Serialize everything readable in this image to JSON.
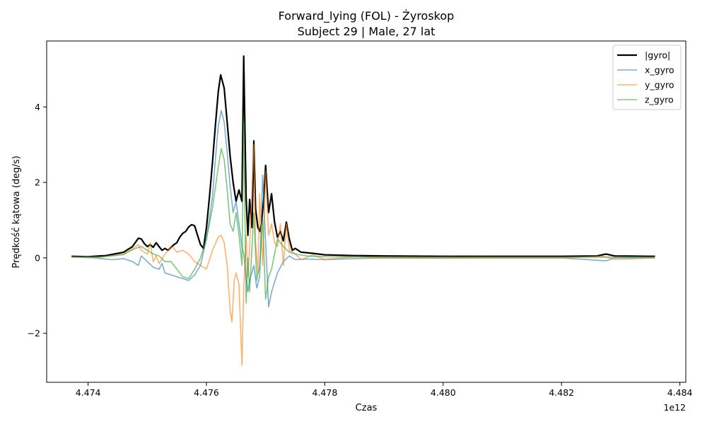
{
  "chart_data": {
    "type": "line",
    "title": "Forward_lying (FOL) - Żyroskop",
    "subtitle": "Subject 29 | Male, 27 lat",
    "xlabel": "Czas",
    "ylabel": "Prędkość kątowa (deg/s)",
    "x_offset_label": "1e12",
    "xlim": [
      4.4733,
      4.4841
    ],
    "ylim": [
      -3.3,
      5.75
    ],
    "x_ticks": [
      4.474,
      4.476,
      4.478,
      4.48,
      4.482,
      4.484
    ],
    "x_tick_labels": [
      "4.474",
      "4.476",
      "4.478",
      "4.480",
      "4.482",
      "4.484"
    ],
    "y_ticks": [
      -2,
      0,
      2,
      4
    ],
    "y_tick_labels": [
      "−2",
      "0",
      "2",
      "4"
    ],
    "grid": false,
    "legend_position": "top-right",
    "series": [
      {
        "name": "|gyro|",
        "color": "#000000",
        "width": 2.2,
        "opacity": 1,
        "points": [
          [
            4.47372,
            0.04
          ],
          [
            4.474,
            0.03
          ],
          [
            4.4743,
            0.06
          ],
          [
            4.4746,
            0.15
          ],
          [
            4.47475,
            0.3
          ],
          [
            4.47485,
            0.52
          ],
          [
            4.4749,
            0.5
          ],
          [
            4.47495,
            0.38
          ],
          [
            4.475,
            0.3
          ],
          [
            4.47505,
            0.35
          ],
          [
            4.4751,
            0.28
          ],
          [
            4.47515,
            0.4
          ],
          [
            4.4752,
            0.3
          ],
          [
            4.47525,
            0.2
          ],
          [
            4.4753,
            0.25
          ],
          [
            4.47535,
            0.2
          ],
          [
            4.4754,
            0.28
          ],
          [
            4.47545,
            0.35
          ],
          [
            4.4755,
            0.4
          ],
          [
            4.47555,
            0.55
          ],
          [
            4.4756,
            0.65
          ],
          [
            4.47565,
            0.7
          ],
          [
            4.4757,
            0.82
          ],
          [
            4.47575,
            0.88
          ],
          [
            4.4758,
            0.85
          ],
          [
            4.47585,
            0.6
          ],
          [
            4.4759,
            0.35
          ],
          [
            4.47595,
            0.25
          ],
          [
            4.476,
            0.8
          ],
          [
            4.47605,
            1.6
          ],
          [
            4.4761,
            2.5
          ],
          [
            4.47615,
            3.5
          ],
          [
            4.4762,
            4.4
          ],
          [
            4.47624,
            4.85
          ],
          [
            4.4763,
            4.5
          ],
          [
            4.47635,
            3.6
          ],
          [
            4.4764,
            2.7
          ],
          [
            4.47645,
            2.0
          ],
          [
            4.4765,
            1.5
          ],
          [
            4.47655,
            1.8
          ],
          [
            4.4766,
            1.5
          ],
          [
            4.47663,
            5.35
          ],
          [
            4.47667,
            1.6
          ],
          [
            4.4767,
            0.6
          ],
          [
            4.47673,
            1.55
          ],
          [
            4.47677,
            0.8
          ],
          [
            4.4768,
            3.1
          ],
          [
            4.47683,
            1.3
          ],
          [
            4.47687,
            0.8
          ],
          [
            4.4769,
            0.7
          ],
          [
            4.47693,
            0.9
          ],
          [
            4.47697,
            1.6
          ],
          [
            4.477,
            2.45
          ],
          [
            4.47705,
            1.2
          ],
          [
            4.4771,
            1.7
          ],
          [
            4.47715,
            0.95
          ],
          [
            4.4772,
            0.55
          ],
          [
            4.47725,
            0.7
          ],
          [
            4.4773,
            0.45
          ],
          [
            4.47735,
            0.95
          ],
          [
            4.4774,
            0.5
          ],
          [
            4.47745,
            0.2
          ],
          [
            4.4775,
            0.25
          ],
          [
            4.4776,
            0.15
          ],
          [
            4.4778,
            0.12
          ],
          [
            4.478,
            0.08
          ],
          [
            4.4785,
            0.06
          ],
          [
            4.479,
            0.05
          ],
          [
            4.48,
            0.04
          ],
          [
            4.481,
            0.04
          ],
          [
            4.482,
            0.04
          ],
          [
            4.4826,
            0.05
          ],
          [
            4.48275,
            0.1
          ],
          [
            4.4829,
            0.05
          ],
          [
            4.4835,
            0.04
          ],
          [
            4.48358,
            0.04
          ]
        ]
      },
      {
        "name": "x_gyro",
        "color": "#1f77b4",
        "width": 1.6,
        "opacity": 0.6,
        "points": [
          [
            4.47372,
            0.03
          ],
          [
            4.4741,
            0.0
          ],
          [
            4.4744,
            -0.05
          ],
          [
            4.4746,
            -0.02
          ],
          [
            4.47475,
            -0.1
          ],
          [
            4.47485,
            -0.2
          ],
          [
            4.4749,
            0.05
          ],
          [
            4.475,
            -0.1
          ],
          [
            4.4751,
            -0.25
          ],
          [
            4.4752,
            -0.3
          ],
          [
            4.47525,
            -0.15
          ],
          [
            4.4753,
            -0.4
          ],
          [
            4.4755,
            -0.5
          ],
          [
            4.4757,
            -0.6
          ],
          [
            4.4758,
            -0.45
          ],
          [
            4.4759,
            -0.2
          ],
          [
            4.476,
            0.5
          ],
          [
            4.4761,
            1.6
          ],
          [
            4.47615,
            2.6
          ],
          [
            4.4762,
            3.5
          ],
          [
            4.47625,
            3.9
          ],
          [
            4.4763,
            3.6
          ],
          [
            4.47635,
            2.8
          ],
          [
            4.4764,
            1.9
          ],
          [
            4.47645,
            1.2
          ],
          [
            4.4765,
            1.5
          ],
          [
            4.47655,
            0.9
          ],
          [
            4.4766,
            0.3
          ],
          [
            4.47663,
            0.1
          ],
          [
            4.47667,
            -0.5
          ],
          [
            4.4767,
            -0.9
          ],
          [
            4.47673,
            -0.6
          ],
          [
            4.4768,
            -0.2
          ],
          [
            4.47685,
            -0.8
          ],
          [
            4.4769,
            -0.5
          ],
          [
            4.47695,
            2.2
          ],
          [
            4.477,
            0.4
          ],
          [
            4.47705,
            -1.3
          ],
          [
            4.4771,
            -0.9
          ],
          [
            4.4772,
            -0.4
          ],
          [
            4.4773,
            -0.1
          ],
          [
            4.4774,
            0.05
          ],
          [
            4.4775,
            -0.05
          ],
          [
            4.4777,
            -0.03
          ],
          [
            4.478,
            -0.05
          ],
          [
            4.4785,
            -0.02
          ],
          [
            4.479,
            0.0
          ],
          [
            4.48,
            -0.01
          ],
          [
            4.481,
            0.0
          ],
          [
            4.482,
            0.0
          ],
          [
            4.48275,
            -0.08
          ],
          [
            4.4829,
            0.0
          ],
          [
            4.48358,
            0.0
          ]
        ]
      },
      {
        "name": "y_gyro",
        "color": "#ff7f0e",
        "width": 1.6,
        "opacity": 0.6,
        "points": [
          [
            4.47372,
            0.02
          ],
          [
            4.4742,
            0.02
          ],
          [
            4.4746,
            0.08
          ],
          [
            4.4748,
            0.3
          ],
          [
            4.47485,
            0.35
          ],
          [
            4.4749,
            0.2
          ],
          [
            4.475,
            0.1
          ],
          [
            4.47505,
            0.4
          ],
          [
            4.4751,
            -0.1
          ],
          [
            4.47515,
            0.05
          ],
          [
            4.4752,
            -0.15
          ],
          [
            4.4753,
            0.1
          ],
          [
            4.4754,
            0.3
          ],
          [
            4.47545,
            0.25
          ],
          [
            4.4755,
            0.15
          ],
          [
            4.4756,
            0.2
          ],
          [
            4.4757,
            0.1
          ],
          [
            4.4758,
            -0.1
          ],
          [
            4.4759,
            -0.2
          ],
          [
            4.476,
            -0.3
          ],
          [
            4.4761,
            0.2
          ],
          [
            4.4762,
            0.55
          ],
          [
            4.47625,
            0.6
          ],
          [
            4.4763,
            0.4
          ],
          [
            4.47635,
            -0.2
          ],
          [
            4.4764,
            -1.4
          ],
          [
            4.47643,
            -1.7
          ],
          [
            4.47647,
            -0.6
          ],
          [
            4.4765,
            -0.4
          ],
          [
            4.47655,
            -0.7
          ],
          [
            4.4766,
            -2.85
          ],
          [
            4.47663,
            -0.8
          ],
          [
            4.47667,
            0.6
          ],
          [
            4.4767,
            -0.5
          ],
          [
            4.47673,
            0.3
          ],
          [
            4.4768,
            3.0
          ],
          [
            4.47683,
            0.4
          ],
          [
            4.47687,
            -0.4
          ],
          [
            4.4769,
            1.7
          ],
          [
            4.47695,
            -0.2
          ],
          [
            4.477,
            2.3
          ],
          [
            4.47705,
            0.6
          ],
          [
            4.4771,
            0.9
          ],
          [
            4.47715,
            0.4
          ],
          [
            4.4772,
            0.3
          ],
          [
            4.47725,
            0.9
          ],
          [
            4.4773,
            -0.2
          ],
          [
            4.47735,
            0.9
          ],
          [
            4.4774,
            0.2
          ],
          [
            4.4775,
            0.1
          ],
          [
            4.4776,
            -0.05
          ],
          [
            4.4778,
            0.08
          ],
          [
            4.478,
            -0.04
          ],
          [
            4.4785,
            0.03
          ],
          [
            4.479,
            0.0
          ],
          [
            4.48,
            0.01
          ],
          [
            4.481,
            0.0
          ],
          [
            4.482,
            0.0
          ],
          [
            4.4827,
            0.04
          ],
          [
            4.4829,
            -0.04
          ],
          [
            4.48358,
            0.0
          ]
        ]
      },
      {
        "name": "z_gyro",
        "color": "#2ca02c",
        "width": 1.6,
        "opacity": 0.6,
        "points": [
          [
            4.47372,
            0.02
          ],
          [
            4.4742,
            0.02
          ],
          [
            4.4746,
            0.1
          ],
          [
            4.4748,
            0.25
          ],
          [
            4.4749,
            0.3
          ],
          [
            4.475,
            0.2
          ],
          [
            4.4751,
            0.1
          ],
          [
            4.4752,
            0.05
          ],
          [
            4.4753,
            -0.1
          ],
          [
            4.4754,
            -0.1
          ],
          [
            4.4755,
            -0.3
          ],
          [
            4.4756,
            -0.5
          ],
          [
            4.4757,
            -0.55
          ],
          [
            4.4758,
            -0.3
          ],
          [
            4.4759,
            0.0
          ],
          [
            4.476,
            0.5
          ],
          [
            4.4761,
            1.3
          ],
          [
            4.4762,
            2.4
          ],
          [
            4.47625,
            2.9
          ],
          [
            4.4763,
            2.6
          ],
          [
            4.47635,
            1.8
          ],
          [
            4.4764,
            0.9
          ],
          [
            4.47645,
            0.7
          ],
          [
            4.4765,
            1.2
          ],
          [
            4.47655,
            0.6
          ],
          [
            4.4766,
            -0.2
          ],
          [
            4.47663,
            3.6
          ],
          [
            4.47667,
            -1.2
          ],
          [
            4.4767,
            0.0
          ],
          [
            4.47673,
            -0.9
          ],
          [
            4.4768,
            1.2
          ],
          [
            4.47685,
            -0.6
          ],
          [
            4.4769,
            -0.2
          ],
          [
            4.47695,
            1.0
          ],
          [
            4.477,
            -1.1
          ],
          [
            4.47705,
            -0.5
          ],
          [
            4.4771,
            -0.3
          ],
          [
            4.4772,
            0.5
          ],
          [
            4.4773,
            0.3
          ],
          [
            4.4774,
            0.15
          ],
          [
            4.4775,
            0.1
          ],
          [
            4.4777,
            0.05
          ],
          [
            4.478,
            0.03
          ],
          [
            4.479,
            0.02
          ],
          [
            4.48,
            0.02
          ],
          [
            4.481,
            0.02
          ],
          [
            4.482,
            0.02
          ],
          [
            4.4827,
            0.02
          ],
          [
            4.48358,
            0.02
          ]
        ]
      }
    ]
  }
}
